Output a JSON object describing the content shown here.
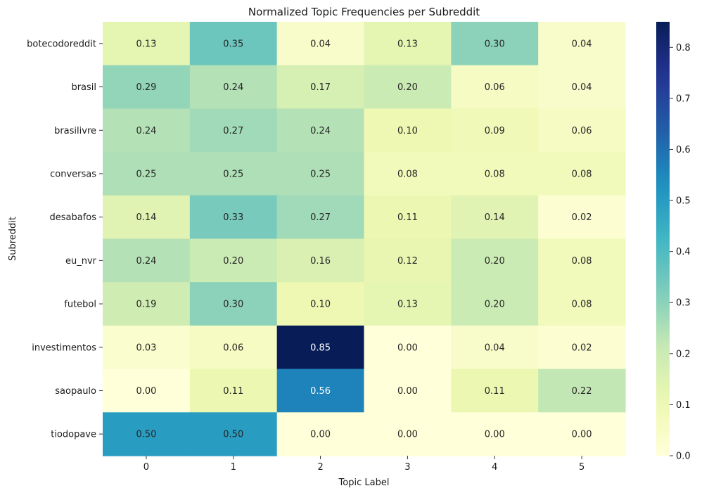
{
  "chart_data": {
    "type": "heatmap",
    "title": "Normalized Topic Frequencies per Subreddit",
    "xlabel": "Topic Label",
    "ylabel": "Subreddit",
    "x_categories": [
      "0",
      "1",
      "2",
      "3",
      "4",
      "5"
    ],
    "y_categories": [
      "botecodoreddit",
      "brasil",
      "brasilivre",
      "conversas",
      "desabafos",
      "eu_nvr",
      "futebol",
      "investimentos",
      "saopaulo",
      "tiodopave"
    ],
    "values": [
      [
        0.13,
        0.35,
        0.04,
        0.13,
        0.3,
        0.04
      ],
      [
        0.29,
        0.24,
        0.17,
        0.2,
        0.06,
        0.04
      ],
      [
        0.24,
        0.27,
        0.24,
        0.1,
        0.09,
        0.06
      ],
      [
        0.25,
        0.25,
        0.25,
        0.08,
        0.08,
        0.08
      ],
      [
        0.14,
        0.33,
        0.27,
        0.11,
        0.14,
        0.02
      ],
      [
        0.24,
        0.2,
        0.16,
        0.12,
        0.2,
        0.08
      ],
      [
        0.19,
        0.3,
        0.1,
        0.13,
        0.2,
        0.08
      ],
      [
        0.03,
        0.06,
        0.85,
        0.0,
        0.04,
        0.02
      ],
      [
        0.0,
        0.11,
        0.56,
        0.0,
        0.11,
        0.22
      ],
      [
        0.5,
        0.5,
        0.0,
        0.0,
        0.0,
        0.0
      ]
    ],
    "value_format_decimals": 2,
    "colorbar": {
      "colormap": "YlGnBu",
      "vmin": 0.0,
      "vmax": 0.85,
      "ticks": [
        0.0,
        0.1,
        0.2,
        0.3,
        0.4,
        0.5,
        0.6,
        0.7,
        0.8
      ],
      "tick_labels": [
        "0.0",
        "0.1",
        "0.2",
        "0.3",
        "0.4",
        "0.5",
        "0.6",
        "0.7",
        "0.8"
      ]
    },
    "grid": false,
    "legend": "colorbar-right"
  }
}
